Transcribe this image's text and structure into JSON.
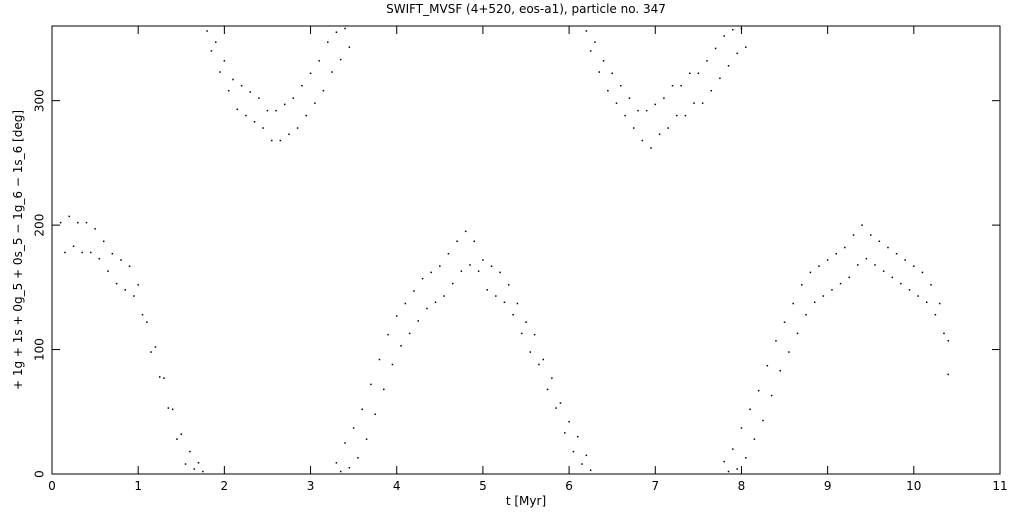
{
  "chart_data": {
    "type": "scatter",
    "title": "SWIFT_MVSF (4+520, eos-a1), particle no. 347",
    "x_label": "t [Myr]",
    "y_label": "+ 1g + 1s + 0g_5 + 0s_5 − 1g_6 − 1s_6 [deg]",
    "color": "#000000",
    "xlim": [
      0,
      11
    ],
    "xticks": [
      0,
      1,
      2,
      3,
      4,
      5,
      6,
      7,
      8,
      9,
      10,
      11
    ],
    "ylim": [
      0,
      360
    ],
    "yticks": [
      0,
      100,
      200,
      300
    ],
    "x": [
      0.1,
      0.15,
      0.2,
      0.25,
      0.3,
      0.35,
      0.4,
      0.45,
      0.5,
      0.55,
      0.6,
      0.65,
      0.7,
      0.75,
      0.8,
      0.85,
      0.9,
      0.95,
      1.0,
      1.05,
      1.1,
      1.15,
      1.2,
      1.25,
      1.3,
      1.35,
      1.4,
      1.45,
      1.5,
      1.55,
      1.6,
      1.65,
      1.7,
      1.75,
      1.8,
      1.85,
      1.9,
      1.95,
      2.0,
      2.05,
      2.1,
      2.15,
      2.2,
      2.25,
      2.3,
      2.35,
      2.4,
      2.45,
      2.5,
      2.55,
      2.6,
      2.65,
      2.7,
      2.75,
      2.8,
      2.85,
      2.9,
      2.95,
      3.0,
      3.05,
      3.1,
      3.15,
      3.2,
      3.25,
      3.3,
      3.35,
      3.4,
      3.45,
      3.3,
      3.35,
      3.4,
      3.45,
      3.5,
      3.55,
      3.6,
      3.65,
      3.7,
      3.75,
      3.8,
      3.85,
      3.9,
      3.95,
      4.0,
      4.05,
      4.1,
      4.15,
      4.2,
      4.25,
      4.3,
      4.35,
      4.4,
      4.45,
      4.5,
      4.55,
      4.6,
      4.65,
      4.7,
      4.75,
      4.8,
      4.85,
      4.9,
      4.95,
      5.0,
      5.05,
      5.1,
      5.15,
      5.2,
      5.25,
      5.3,
      5.35,
      5.4,
      5.45,
      5.5,
      5.55,
      5.6,
      5.65,
      5.7,
      5.75,
      5.8,
      5.85,
      5.9,
      5.95,
      6.0,
      6.05,
      6.1,
      6.15,
      6.2,
      6.25,
      6.2,
      6.25,
      6.3,
      6.35,
      6.4,
      6.45,
      6.5,
      6.55,
      6.6,
      6.65,
      6.7,
      6.75,
      6.8,
      6.85,
      6.9,
      6.95,
      7.0,
      7.05,
      7.1,
      7.15,
      7.2,
      7.25,
      7.3,
      7.35,
      7.4,
      7.45,
      7.5,
      7.55,
      7.6,
      7.65,
      7.7,
      7.75,
      7.8,
      7.85,
      7.9,
      7.95,
      8.0,
      8.05,
      7.8,
      7.85,
      7.9,
      7.95,
      8.0,
      8.05,
      8.1,
      8.15,
      8.2,
      8.25,
      8.3,
      8.35,
      8.4,
      8.45,
      8.5,
      8.55,
      8.6,
      8.65,
      8.7,
      8.75,
      8.8,
      8.85,
      8.9,
      8.95,
      9.0,
      9.05,
      9.1,
      9.15,
      9.2,
      9.25,
      9.3,
      9.35,
      9.4,
      9.45,
      9.5,
      9.55,
      9.6,
      9.65,
      9.7,
      9.75,
      9.8,
      9.85,
      9.9,
      9.95,
      10.0,
      10.05,
      10.1,
      10.15,
      10.2,
      10.25,
      10.3,
      10.35,
      10.4,
      10.4
    ],
    "values": [
      202,
      178,
      207,
      183,
      202,
      178,
      202,
      178,
      197,
      173,
      187,
      163,
      177,
      153,
      172,
      148,
      167,
      143,
      152,
      128,
      122,
      98,
      102,
      78,
      77,
      53,
      52,
      28,
      32,
      8,
      18,
      4,
      9,
      2,
      356,
      340,
      347,
      323,
      332,
      308,
      317,
      293,
      312,
      288,
      307,
      283,
      302,
      278,
      292,
      268,
      292,
      268,
      297,
      273,
      302,
      278,
      312,
      288,
      322,
      298,
      332,
      308,
      347,
      323,
      355,
      333,
      358,
      343,
      9,
      2,
      25,
      5,
      37,
      13,
      52,
      28,
      72,
      48,
      92,
      68,
      112,
      88,
      127,
      103,
      137,
      113,
      147,
      123,
      157,
      133,
      162,
      138,
      167,
      143,
      177,
      153,
      187,
      163,
      195,
      168,
      187,
      163,
      172,
      148,
      167,
      143,
      162,
      138,
      152,
      128,
      137,
      113,
      122,
      98,
      112,
      88,
      92,
      68,
      77,
      53,
      57,
      33,
      42,
      18,
      30,
      8,
      15,
      3,
      356,
      340,
      347,
      323,
      332,
      308,
      322,
      298,
      312,
      288,
      302,
      278,
      292,
      268,
      292,
      262,
      297,
      273,
      302,
      278,
      312,
      288,
      312,
      288,
      322,
      298,
      322,
      298,
      332,
      308,
      342,
      318,
      352,
      328,
      357,
      338,
      358,
      343,
      10,
      2,
      20,
      4,
      37,
      13,
      52,
      28,
      67,
      43,
      87,
      63,
      107,
      83,
      122,
      98,
      137,
      113,
      152,
      128,
      162,
      138,
      167,
      143,
      172,
      148,
      177,
      153,
      182,
      158,
      192,
      168,
      200,
      173,
      192,
      168,
      187,
      163,
      182,
      158,
      177,
      153,
      172,
      148,
      167,
      143,
      162,
      138,
      152,
      128,
      137,
      113,
      107,
      80
    ]
  }
}
